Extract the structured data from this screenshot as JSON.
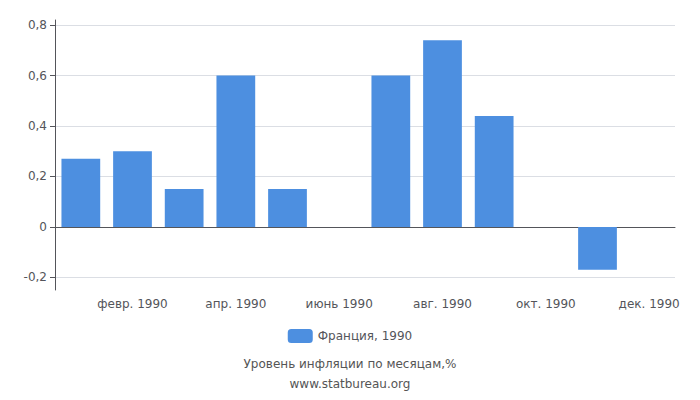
{
  "chart_data": {
    "type": "bar",
    "categories": [
      null,
      "февр. 1990",
      null,
      "апр. 1990",
      null,
      "июнь 1990",
      null,
      "авг. 1990",
      null,
      "окт. 1990",
      null,
      "дек. 1990"
    ],
    "series": [
      {
        "name": "Франция, 1990",
        "color": "#4d8fe0",
        "values": [
          0.27,
          0.3,
          0.15,
          0.6,
          0.15,
          0.0,
          0.6,
          0.74,
          0.44,
          0.0,
          -0.17,
          0.0
        ]
      }
    ],
    "ylim": [
      -0.25,
      0.82
    ],
    "yticks": [
      {
        "value": -0.2,
        "label": "-0,2"
      },
      0,
      {
        "value": 0.2,
        "label": "0,2"
      },
      {
        "value": 0.4,
        "label": "0,4"
      },
      {
        "value": 0.6,
        "label": "0,6"
      },
      {
        "value": 0.8,
        "label": "0,8"
      }
    ],
    "xlabel": "Уровень инфляции по месяцам,%",
    "annotations": [
      "www.statbureau.org"
    ],
    "grid": true,
    "legend": "bottom"
  }
}
